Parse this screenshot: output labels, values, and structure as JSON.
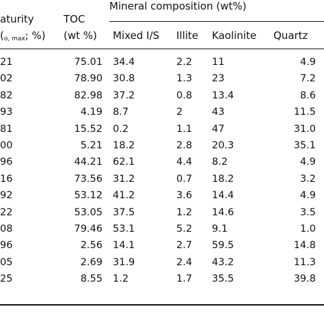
{
  "header": {
    "group_title": "Mineral composition (wt%)",
    "maturity_line1": "aturity",
    "maturity_line2_prefix": "(",
    "maturity_sub": "o, max",
    "maturity_line2_suffix": "; %)",
    "toc_line1": "TOC",
    "toc_line2": "(wt %)",
    "col_mixed": "Mixed I/S",
    "col_illite": "Illite",
    "col_kaolinite": "Kaolinite",
    "col_quartz": "Quartz"
  },
  "rows": [
    {
      "maturity": "21",
      "toc": "75.01",
      "mixed": "34.4",
      "illite": "2.2",
      "kaolinite": "11",
      "quartz": "4.9"
    },
    {
      "maturity": "02",
      "toc": "78.90",
      "mixed": "30.8",
      "illite": "1.3",
      "kaolinite": "23",
      "quartz": "7.2"
    },
    {
      "maturity": "82",
      "toc": "82.98",
      "mixed": "37.2",
      "illite": "0.8",
      "kaolinite": "13.4",
      "quartz": "8.6"
    },
    {
      "maturity": "93",
      "toc": "4.19",
      "mixed": "8.7",
      "illite": "2",
      "kaolinite": "43",
      "quartz": "11.5"
    },
    {
      "maturity": "81",
      "toc": "15.52",
      "mixed": "0.2",
      "illite": "1.1",
      "kaolinite": "47",
      "quartz": "31.0"
    },
    {
      "maturity": "00",
      "toc": "5.21",
      "mixed": "18.2",
      "illite": "2.8",
      "kaolinite": "20.3",
      "quartz": "35.1"
    },
    {
      "maturity": "96",
      "toc": "44.21",
      "mixed": "62.1",
      "illite": "4.4",
      "kaolinite": "8.2",
      "quartz": "4.9"
    },
    {
      "maturity": "16",
      "toc": "73.56",
      "mixed": "31.2",
      "illite": "0.7",
      "kaolinite": "18.2",
      "quartz": "3.2"
    },
    {
      "maturity": "92",
      "toc": "53.12",
      "mixed": "41.2",
      "illite": "3.6",
      "kaolinite": "14.4",
      "quartz": "4.9"
    },
    {
      "maturity": "22",
      "toc": "53.05",
      "mixed": "37.5",
      "illite": "1.2",
      "kaolinite": "14.6",
      "quartz": "3.5"
    },
    {
      "maturity": "08",
      "toc": "79.46",
      "mixed": "53.1",
      "illite": "5.2",
      "kaolinite": "9.1",
      "quartz": "1.0"
    },
    {
      "maturity": "96",
      "toc": "2.56",
      "mixed": "14.1",
      "illite": "2.7",
      "kaolinite": "59.5",
      "quartz": "14.8"
    },
    {
      "maturity": "05",
      "toc": "2.69",
      "mixed": "31.9",
      "illite": "2.4",
      "kaolinite": "43.2",
      "quartz": "11.3"
    },
    {
      "maturity": "25",
      "toc": "8.55",
      "mixed": "1.2",
      "illite": "1.7",
      "kaolinite": "35.5",
      "quartz": "39.8"
    }
  ]
}
